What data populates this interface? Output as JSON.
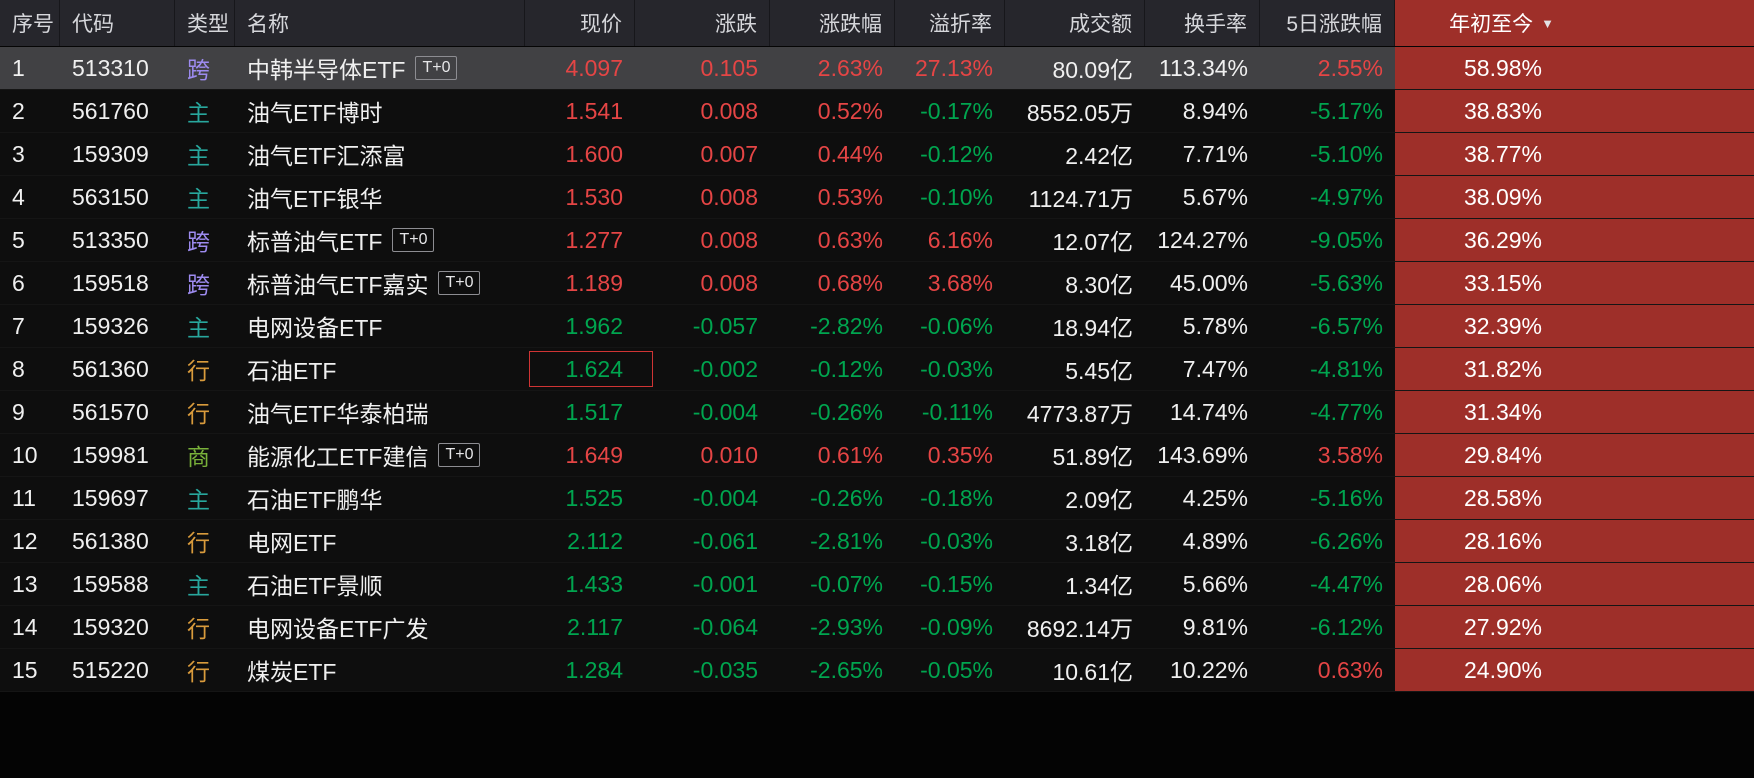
{
  "ui": {
    "sort_arrow": "▼"
  },
  "colors": {
    "up": "#e54545",
    "down": "#00a54f",
    "text": "#f0f0f0",
    "ytd_bg": "#9e2f29",
    "type": {
      "跨": "#9d8bef",
      "主": "#28a79d",
      "行": "#d99b3c",
      "商": "#79b13a"
    }
  },
  "table": {
    "columns": [
      {
        "key": "index",
        "label": "序号",
        "align": "left"
      },
      {
        "key": "code",
        "label": "代码",
        "align": "left"
      },
      {
        "key": "type",
        "label": "类型",
        "align": "left"
      },
      {
        "key": "name",
        "label": "名称",
        "align": "left"
      },
      {
        "key": "price",
        "label": "现价",
        "align": "right"
      },
      {
        "key": "change",
        "label": "涨跌",
        "align": "right"
      },
      {
        "key": "change_pct",
        "label": "涨跌幅",
        "align": "right"
      },
      {
        "key": "premium",
        "label": "溢折率",
        "align": "right"
      },
      {
        "key": "turnover",
        "label": "成交额",
        "align": "right"
      },
      {
        "key": "turnover_rate",
        "label": "换手率",
        "align": "right"
      },
      {
        "key": "change_5d",
        "label": "5日涨跌幅",
        "align": "right"
      },
      {
        "key": "ytd",
        "label": "年初至今",
        "align": "right",
        "sorted": "desc"
      }
    ],
    "rows": [
      {
        "index": "1",
        "code": "513310",
        "type": "跨",
        "name": "中韩半导体ETF",
        "badge": "T+0",
        "price": "4.097",
        "change": "0.105",
        "change_pct": "2.63%",
        "premium": "27.13%",
        "turnover": "80.09亿",
        "turnover_rate": "113.34%",
        "change_5d": "2.55%",
        "ytd": "58.98%",
        "selected": true
      },
      {
        "index": "2",
        "code": "561760",
        "type": "主",
        "name": "油气ETF博时",
        "badge": null,
        "price": "1.541",
        "change": "0.008",
        "change_pct": "0.52%",
        "premium": "-0.17%",
        "turnover": "8552.05万",
        "turnover_rate": "8.94%",
        "change_5d": "-5.17%",
        "ytd": "38.83%"
      },
      {
        "index": "3",
        "code": "159309",
        "type": "主",
        "name": "油气ETF汇添富",
        "badge": null,
        "price": "1.600",
        "change": "0.007",
        "change_pct": "0.44%",
        "premium": "-0.12%",
        "turnover": "2.42亿",
        "turnover_rate": "7.71%",
        "change_5d": "-5.10%",
        "ytd": "38.77%"
      },
      {
        "index": "4",
        "code": "563150",
        "type": "主",
        "name": "油气ETF银华",
        "badge": null,
        "price": "1.530",
        "change": "0.008",
        "change_pct": "0.53%",
        "premium": "-0.10%",
        "turnover": "1124.71万",
        "turnover_rate": "5.67%",
        "change_5d": "-4.97%",
        "ytd": "38.09%"
      },
      {
        "index": "5",
        "code": "513350",
        "type": "跨",
        "name": "标普油气ETF",
        "badge": "T+0",
        "price": "1.277",
        "change": "0.008",
        "change_pct": "0.63%",
        "premium": "6.16%",
        "turnover": "12.07亿",
        "turnover_rate": "124.27%",
        "change_5d": "-9.05%",
        "ytd": "36.29%"
      },
      {
        "index": "6",
        "code": "159518",
        "type": "跨",
        "name": "标普油气ETF嘉实",
        "badge": "T+0",
        "price": "1.189",
        "change": "0.008",
        "change_pct": "0.68%",
        "premium": "3.68%",
        "turnover": "8.30亿",
        "turnover_rate": "45.00%",
        "change_5d": "-5.63%",
        "ytd": "33.15%"
      },
      {
        "index": "7",
        "code": "159326",
        "type": "主",
        "name": "电网设备ETF",
        "badge": null,
        "price": "1.962",
        "change": "-0.057",
        "change_pct": "-2.82%",
        "premium": "-0.06%",
        "turnover": "18.94亿",
        "turnover_rate": "5.78%",
        "change_5d": "-6.57%",
        "ytd": "32.39%"
      },
      {
        "index": "8",
        "code": "561360",
        "type": "行",
        "name": "石油ETF",
        "badge": null,
        "price": "1.624",
        "change": "-0.002",
        "change_pct": "-0.12%",
        "premium": "-0.03%",
        "turnover": "5.45亿",
        "turnover_rate": "7.47%",
        "change_5d": "-4.81%",
        "ytd": "31.82%",
        "price_boxed": true
      },
      {
        "index": "9",
        "code": "561570",
        "type": "行",
        "name": "油气ETF华泰柏瑞",
        "badge": null,
        "price": "1.517",
        "change": "-0.004",
        "change_pct": "-0.26%",
        "premium": "-0.11%",
        "turnover": "4773.87万",
        "turnover_rate": "14.74%",
        "change_5d": "-4.77%",
        "ytd": "31.34%"
      },
      {
        "index": "10",
        "code": "159981",
        "type": "商",
        "name": "能源化工ETF建信",
        "badge": "T+0",
        "price": "1.649",
        "change": "0.010",
        "change_pct": "0.61%",
        "premium": "0.35%",
        "turnover": "51.89亿",
        "turnover_rate": "143.69%",
        "change_5d": "3.58%",
        "ytd": "29.84%"
      },
      {
        "index": "11",
        "code": "159697",
        "type": "主",
        "name": "石油ETF鹏华",
        "badge": null,
        "price": "1.525",
        "change": "-0.004",
        "change_pct": "-0.26%",
        "premium": "-0.18%",
        "turnover": "2.09亿",
        "turnover_rate": "4.25%",
        "change_5d": "-5.16%",
        "ytd": "28.58%"
      },
      {
        "index": "12",
        "code": "561380",
        "type": "行",
        "name": "电网ETF",
        "badge": null,
        "price": "2.112",
        "change": "-0.061",
        "change_pct": "-2.81%",
        "premium": "-0.03%",
        "turnover": "3.18亿",
        "turnover_rate": "4.89%",
        "change_5d": "-6.26%",
        "ytd": "28.16%"
      },
      {
        "index": "13",
        "code": "159588",
        "type": "主",
        "name": "石油ETF景顺",
        "badge": null,
        "price": "1.433",
        "change": "-0.001",
        "change_pct": "-0.07%",
        "premium": "-0.15%",
        "turnover": "1.34亿",
        "turnover_rate": "5.66%",
        "change_5d": "-4.47%",
        "ytd": "28.06%"
      },
      {
        "index": "14",
        "code": "159320",
        "type": "行",
        "name": "电网设备ETF广发",
        "badge": null,
        "price": "2.117",
        "change": "-0.064",
        "change_pct": "-2.93%",
        "premium": "-0.09%",
        "turnover": "8692.14万",
        "turnover_rate": "9.81%",
        "change_5d": "-6.12%",
        "ytd": "27.92%"
      },
      {
        "index": "15",
        "code": "515220",
        "type": "行",
        "name": "煤炭ETF",
        "badge": null,
        "price": "1.284",
        "change": "-0.035",
        "change_pct": "-2.65%",
        "premium": "-0.05%",
        "turnover": "10.61亿",
        "turnover_rate": "10.22%",
        "change_5d": "0.63%",
        "ytd": "24.90%"
      }
    ]
  }
}
